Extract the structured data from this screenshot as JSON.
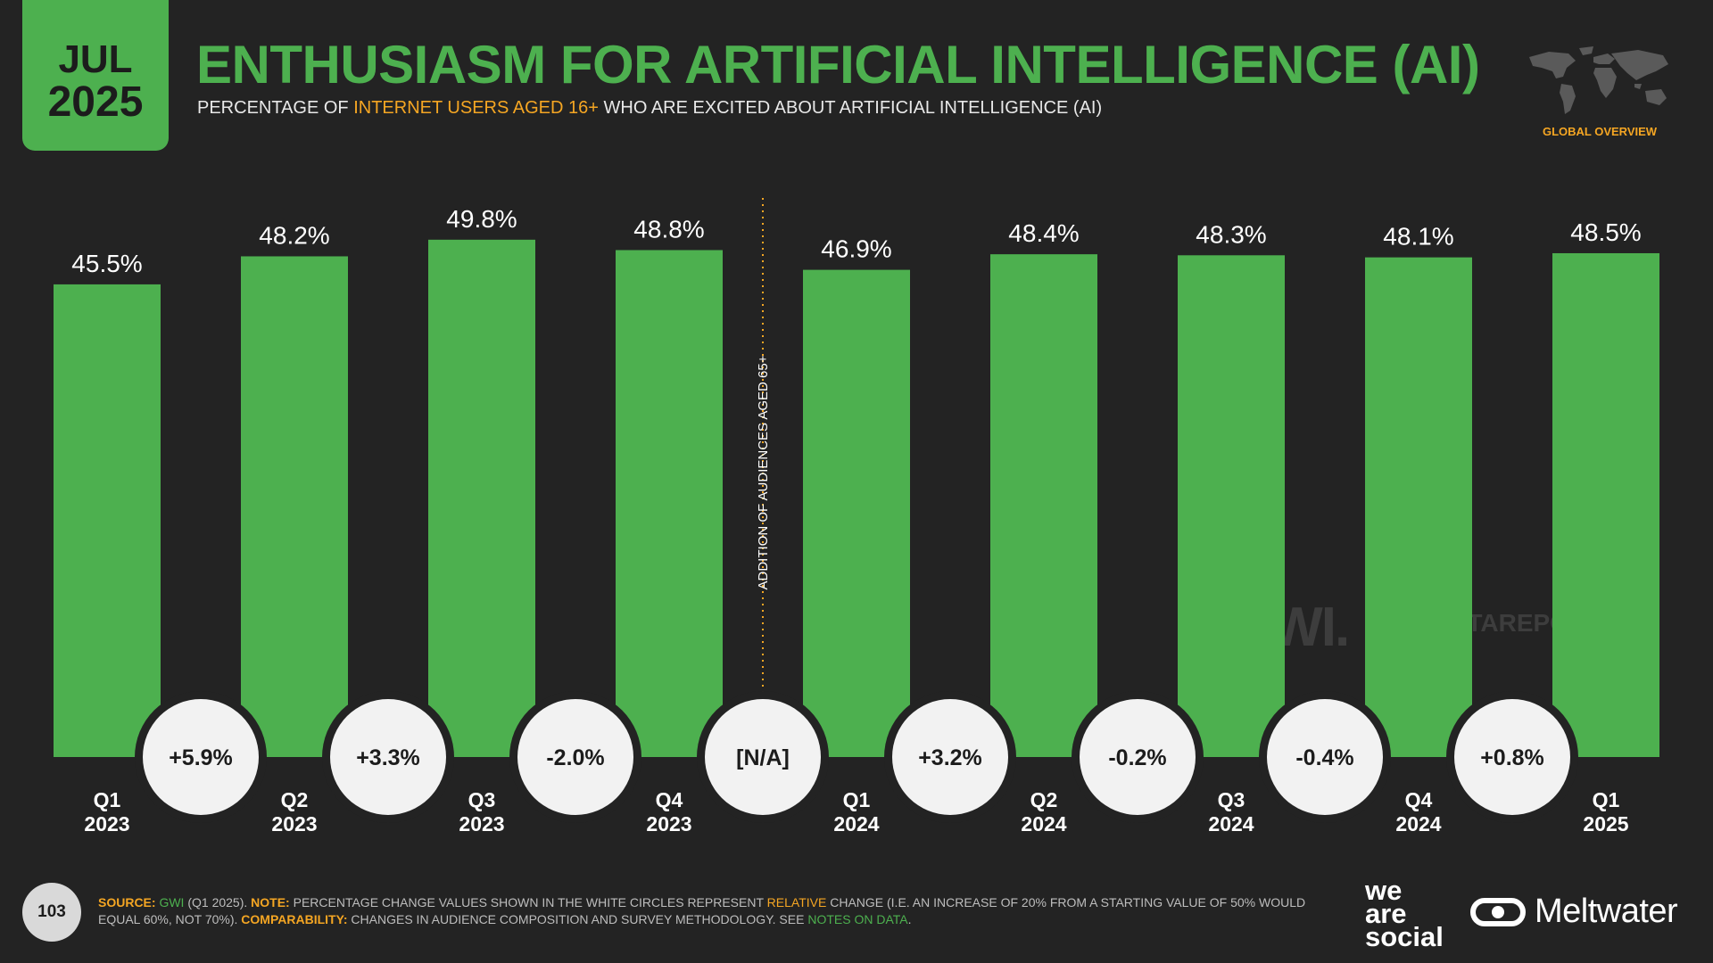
{
  "header": {
    "date_month": "JUL",
    "date_year": "2025",
    "title": "ENTHUSIASM FOR ARTIFICIAL INTELLIGENCE (AI)",
    "subtitle_pre": "PERCENTAGE OF ",
    "subtitle_highlight": "INTERNET USERS AGED 16+",
    "subtitle_post": " WHO ARE EXCITED ABOUT ARTIFICIAL INTELLIGENCE (AI)",
    "region_label": "GLOBAL OVERVIEW",
    "map_icon": "world-map-icon"
  },
  "chart_data": {
    "type": "bar",
    "categories": [
      [
        "Q1",
        "2023"
      ],
      [
        "Q2",
        "2023"
      ],
      [
        "Q3",
        "2023"
      ],
      [
        "Q4",
        "2023"
      ],
      [
        "Q1",
        "2024"
      ],
      [
        "Q2",
        "2024"
      ],
      [
        "Q3",
        "2024"
      ],
      [
        "Q4",
        "2024"
      ],
      [
        "Q1",
        "2025"
      ]
    ],
    "values": [
      45.5,
      48.2,
      49.8,
      48.8,
      46.9,
      48.4,
      48.3,
      48.1,
      48.5
    ],
    "value_labels": [
      "45.5%",
      "48.2%",
      "49.8%",
      "48.8%",
      "46.9%",
      "48.4%",
      "48.3%",
      "48.1%",
      "48.5%"
    ],
    "changes": [
      "+5.9%",
      "+3.3%",
      "-2.0%",
      "[N/A]",
      "+3.2%",
      "-0.2%",
      "-0.4%",
      "+0.8%"
    ],
    "annotation": "ADDITION OF AUDIENCES AGED 65+",
    "annotation_after_index": 3,
    "ylim": [
      0,
      100
    ],
    "colors": {
      "bar": "#4db04f",
      "annotation_line": "#f5a623",
      "circle": "#f2f2f2"
    }
  },
  "watermarks": {
    "gwi": "GWI.",
    "datareportal": "DATAREPORTAL"
  },
  "footer": {
    "page_number": "103",
    "source_label": "SOURCE:",
    "source_name": "GWI",
    "source_detail": " (Q1 2025). ",
    "note_label": "NOTE:",
    "note_text_1": " PERCENTAGE CHANGE VALUES SHOWN IN THE WHITE CIRCLES REPRESENT ",
    "note_relative": "RELATIVE",
    "note_text_2": " CHANGE (I.E. AN INCREASE OF 20% FROM A STARTING VALUE OF 50% WOULD EQUAL 60%, NOT 70%). ",
    "comparability_label": "COMPARABILITY:",
    "comparability_text": " CHANGES IN AUDIENCE COMPOSITION AND SURVEY METHODOLOGY. SEE ",
    "notes_link": "NOTES ON DATA",
    "end": "."
  },
  "brands": {
    "was_line1": "we",
    "was_line2": "are",
    "was_line3": "social",
    "meltwater": "Meltwater"
  }
}
